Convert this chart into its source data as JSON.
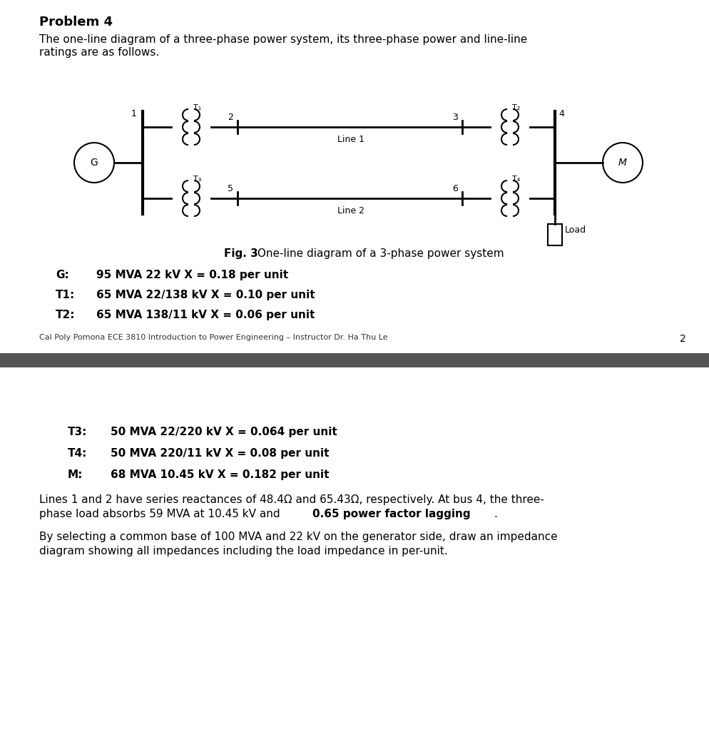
{
  "title": "Problem 4",
  "intro_line1": "The one-line diagram of a three-phase power system, its three-phase power and line-line",
  "intro_line2": "ratings are as follows.",
  "fig_caption_bold": "Fig. 3",
  "fig_caption_normal": " One-line diagram of a 3-phase power system",
  "specs_page1": [
    {
      "label": "G:",
      "text": "95 MVA 22 kV X = 0.18 per unit"
    },
    {
      "label": "T1:",
      "text": "65 MVA 22/138 kV X = 0.10 per unit"
    },
    {
      "label": "T2:",
      "text": "65 MVA 138/11 kV X = 0.06 per unit"
    }
  ],
  "footer_text": "Cal Poly Pomona ECE 3810 Introduction to Power Engineering – Instructor Dr. Ha Thu Le",
  "page_number": "2",
  "divider_color": "#555555",
  "specs_page2": [
    {
      "label": "T3:",
      "text": "50 MVA 22/220 kV X = 0.064 per unit"
    },
    {
      "label": "T4:",
      "text": "50 MVA 220/11 kV X = 0.08 per unit"
    },
    {
      "label": "M:",
      "text": "68 MVA 10.45 kV X = 0.182 per unit"
    }
  ],
  "body1_line1": "Lines 1 and 2 have series reactances of 48.4Ω and 65.43Ω, respectively. At bus 4, the three-",
  "body1_line2_normal": "phase load absorbs 59 MVA at 10.45 kV and ",
  "body1_line2_bold": "0.65 power factor lagging",
  "body1_line2_end": ".",
  "body2_line1": "By selecting a common base of 100 MVA and 22 kV on the generator side, draw an impedance",
  "body2_line2": "diagram showing all impedances including the load impedance in per-unit.",
  "bg_color": "#ffffff",
  "text_color": "#000000",
  "font_size_title": 13,
  "font_size_body": 11,
  "font_size_spec": 11,
  "font_size_footer": 8,
  "font_size_diagram": 9,
  "g_label": "G",
  "m_label": "M",
  "line1_label": "Line 1",
  "line2_label": "Line 2",
  "load_label": "Load",
  "bus_labels_top": [
    "1",
    "2",
    "3",
    "4"
  ],
  "bus_labels_bot": [
    "5",
    "6"
  ],
  "t_labels": [
    "T₁",
    "T₂",
    "T₃",
    "T₄"
  ]
}
